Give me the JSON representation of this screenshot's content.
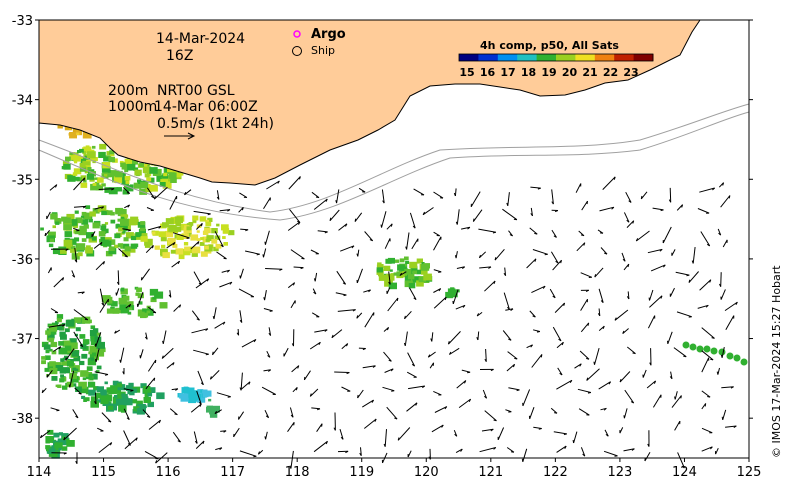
{
  "header": {
    "date": "14-Mar-2024",
    "hour": "16Z",
    "depth_200": "200m",
    "depth_1000": "1000m",
    "product": "NRT00 GSL",
    "product_time": "14-Mar 06:00Z",
    "scale_label": "0.5m/s (1kt 24h)"
  },
  "legend": {
    "argo_label": "Argo",
    "ship_label": "Ship",
    "argo_color": "#ff00ff"
  },
  "colorbar": {
    "title": "4h comp, p50, All Sats",
    "ticks": [
      "15",
      "16",
      "17",
      "18",
      "19",
      "20",
      "21",
      "22",
      "23"
    ],
    "colors": [
      "#000080",
      "#0030d0",
      "#0090f0",
      "#20c0c0",
      "#30b030",
      "#9ad020",
      "#f0e020",
      "#f08010",
      "#c02000",
      "#800000"
    ]
  },
  "credit": "© IMOS 17-Mar-2024 15:27 Hobart",
  "colors": {
    "land": "#ffcc99",
    "coast": "#000000",
    "isobath": "#a0a0a0"
  },
  "chart_data": {
    "type": "map",
    "x_ticks": [
      "114",
      "115",
      "116",
      "117",
      "118",
      "119",
      "120",
      "121",
      "122",
      "123",
      "124",
      "125"
    ],
    "y_ticks": [
      "-33",
      "-34",
      "-35",
      "-36",
      "-37",
      "-38"
    ],
    "xlim": [
      114,
      125
    ],
    "ylim": [
      -38.5,
      -33
    ]
  }
}
